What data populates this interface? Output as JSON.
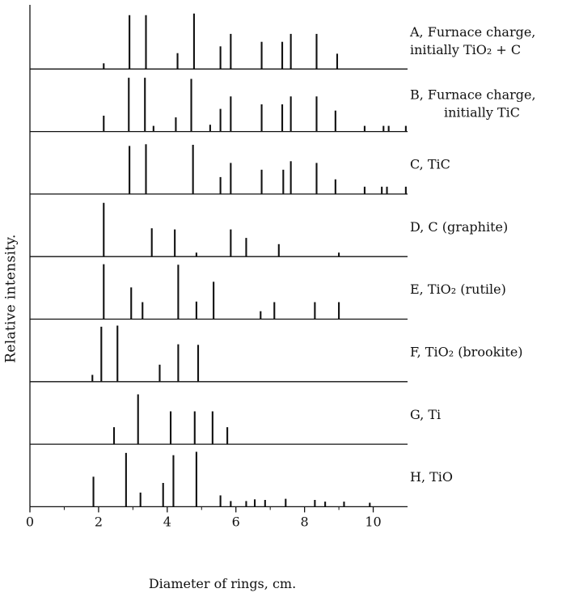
{
  "chart_data": {
    "type": "bar",
    "xlabel": "Diameter of rings, cm.",
    "ylabel": "Relative intensity.",
    "xlim": [
      0,
      11
    ],
    "xticks": [
      0,
      2,
      4,
      6,
      8,
      10
    ],
    "panels": [
      {
        "id": "A",
        "label_lines": [
          "A, Furnace charge,",
          "initially TiO₂ + C"
        ],
        "lines": [
          [
            2.15,
            0.1
          ],
          [
            2.9,
            0.95
          ],
          [
            3.38,
            0.95
          ],
          [
            4.3,
            0.28
          ],
          [
            4.78,
            0.98
          ],
          [
            5.55,
            0.4
          ],
          [
            5.85,
            0.62
          ],
          [
            6.75,
            0.48
          ],
          [
            7.35,
            0.48
          ],
          [
            7.6,
            0.62
          ],
          [
            8.35,
            0.62
          ],
          [
            8.95,
            0.27
          ]
        ]
      },
      {
        "id": "B",
        "label_lines": [
          "B, Furnace charge,",
          "initially TiC"
        ],
        "lines": [
          [
            2.15,
            0.28
          ],
          [
            2.88,
            0.95
          ],
          [
            3.35,
            0.95
          ],
          [
            3.6,
            0.1
          ],
          [
            4.25,
            0.25
          ],
          [
            4.7,
            0.93
          ],
          [
            5.25,
            0.12
          ],
          [
            5.55,
            0.4
          ],
          [
            5.85,
            0.62
          ],
          [
            6.75,
            0.48
          ],
          [
            7.35,
            0.48
          ],
          [
            7.6,
            0.62
          ],
          [
            8.35,
            0.62
          ],
          [
            8.9,
            0.37
          ],
          [
            9.75,
            0.1
          ],
          [
            10.3,
            0.1
          ],
          [
            10.45,
            0.1
          ],
          [
            10.95,
            0.1
          ]
        ]
      },
      {
        "id": "C",
        "label_lines": [
          "C, TiC"
        ],
        "lines": [
          [
            2.9,
            0.85
          ],
          [
            3.38,
            0.88
          ],
          [
            4.75,
            0.87
          ],
          [
            5.55,
            0.3
          ],
          [
            5.85,
            0.55
          ],
          [
            6.75,
            0.43
          ],
          [
            7.38,
            0.43
          ],
          [
            7.6,
            0.58
          ],
          [
            8.35,
            0.55
          ],
          [
            8.9,
            0.26
          ],
          [
            9.75,
            0.13
          ],
          [
            10.25,
            0.13
          ],
          [
            10.4,
            0.13
          ],
          [
            10.95,
            0.13
          ]
        ]
      },
      {
        "id": "D",
        "label_lines": [
          "D, C (graphite)"
        ],
        "lines": [
          [
            2.15,
            0.95
          ],
          [
            3.55,
            0.5
          ],
          [
            4.22,
            0.48
          ],
          [
            4.85,
            0.07
          ],
          [
            5.85,
            0.48
          ],
          [
            6.3,
            0.33
          ],
          [
            7.25,
            0.22
          ],
          [
            9.0,
            0.07
          ]
        ]
      },
      {
        "id": "E",
        "label_lines": [
          "E, TiO₂ (rutile)"
        ],
        "lines": [
          [
            2.15,
            0.97
          ],
          [
            2.95,
            0.56
          ],
          [
            3.28,
            0.3
          ],
          [
            4.32,
            0.96
          ],
          [
            4.85,
            0.31
          ],
          [
            5.35,
            0.66
          ],
          [
            6.72,
            0.14
          ],
          [
            7.12,
            0.3
          ],
          [
            8.3,
            0.3
          ],
          [
            9.0,
            0.3
          ]
        ]
      },
      {
        "id": "F",
        "label_lines": [
          "F, TiO₂ (brookite)"
        ],
        "lines": [
          [
            1.82,
            0.12
          ],
          [
            2.08,
            0.97
          ],
          [
            2.55,
            0.99
          ],
          [
            3.78,
            0.3
          ],
          [
            4.32,
            0.66
          ],
          [
            4.9,
            0.65
          ]
        ]
      },
      {
        "id": "G",
        "label_lines": [
          "G, Ti"
        ],
        "lines": [
          [
            2.45,
            0.3
          ],
          [
            3.15,
            0.88
          ],
          [
            4.1,
            0.58
          ],
          [
            4.8,
            0.58
          ],
          [
            5.32,
            0.58
          ],
          [
            5.75,
            0.3
          ]
        ]
      },
      {
        "id": "H",
        "label_lines": [
          "H, TiO"
        ],
        "lines": [
          [
            1.85,
            0.53
          ],
          [
            2.8,
            0.95
          ],
          [
            3.22,
            0.25
          ],
          [
            3.88,
            0.42
          ],
          [
            4.18,
            0.91
          ],
          [
            4.85,
            0.97
          ],
          [
            5.55,
            0.2
          ],
          [
            5.85,
            0.1
          ],
          [
            6.3,
            0.1
          ],
          [
            6.55,
            0.13
          ],
          [
            6.85,
            0.12
          ],
          [
            7.45,
            0.14
          ],
          [
            8.3,
            0.12
          ],
          [
            8.6,
            0.09
          ],
          [
            9.15,
            0.09
          ],
          [
            9.9,
            0.07
          ]
        ]
      }
    ]
  }
}
